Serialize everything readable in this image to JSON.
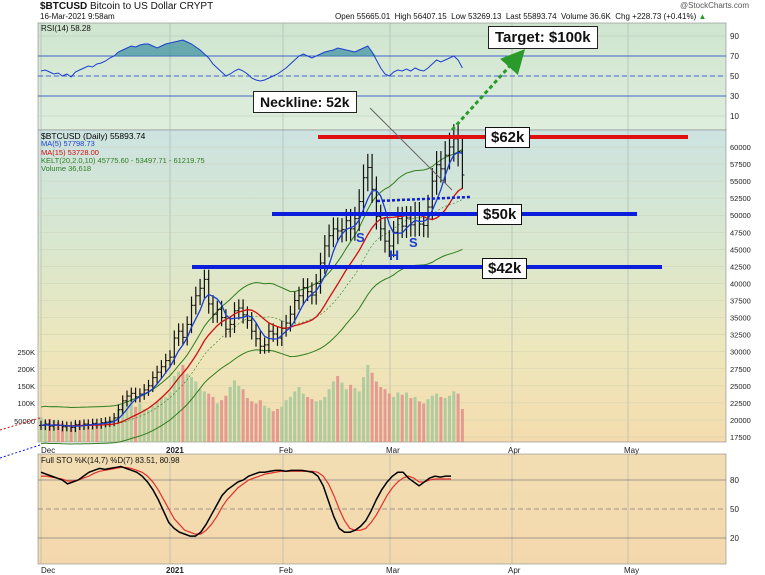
{
  "header": {
    "symbol": "$BTCUSD",
    "name": "Bitcoin to US Dollar",
    "exchange": "CRYPT",
    "date": "16-Mar-2021 9:58am",
    "watermark": "@StockCharts.com",
    "open": "Open 55665.01",
    "high": "High 56407.15",
    "low": "Low 53269.13",
    "last": "Last 55893.74",
    "volume": "Volume 36.6K",
    "chg": "Chg +228.73 (+0.41%)",
    "chg_arrow": "▲"
  },
  "rsi_panel": {
    "label": "RSI(14) 58.28",
    "ticks": [
      "90",
      "70",
      "50",
      "30",
      "10"
    ],
    "levels": [
      70,
      50,
      30
    ]
  },
  "price_panel": {
    "legend": [
      {
        "text": "$BTCUSD (Daily) 55893.74",
        "color": "#000000"
      },
      {
        "text": "MA(5) 57798.73",
        "color": "#1a3ecf"
      },
      {
        "text": "MA(15) 53728.00",
        "color": "#d01010"
      },
      {
        "text": "KELT(20,2.0,10) 45775.60 - 53497.71 - 61219.75",
        "color": "#2e7d1e"
      },
      {
        "text": "Volume 36,618",
        "color": "#2e7d1e"
      }
    ],
    "price_ticks": [
      "60000",
      "57500",
      "55000",
      "52500",
      "50000",
      "47500",
      "45000",
      "42500",
      "40000",
      "37500",
      "35000",
      "32500",
      "30000",
      "27500",
      "25000",
      "22500",
      "20000",
      "17500"
    ],
    "volume_ticks": [
      "250K",
      "200K",
      "150K",
      "100K",
      "50000"
    ]
  },
  "annotations": {
    "target": "Target: $100k",
    "neckline": "Neckline: 52k",
    "level_62": "$62k",
    "level_50": "$50k",
    "level_42": "$42k",
    "hs_left": "S",
    "hs_head": "H",
    "hs_right": "S"
  },
  "sto_panel": {
    "label": "Full STO %K(14,7) %D(7) 83.51, 80.98",
    "ticks": [
      "80",
      "50",
      "20"
    ],
    "levels": [
      80,
      50,
      20
    ]
  },
  "x_axis": {
    "labels": [
      "Dec",
      "2021",
      "Feb",
      "Mar",
      "Apr",
      "May"
    ]
  },
  "chart_data": {
    "type": "candlestick",
    "title": "$BTCUSD Bitcoin to US Dollar CRYPT",
    "x_labels": [
      "Dec",
      "2021",
      "Feb",
      "Mar",
      "Apr",
      "May"
    ],
    "y_range": [
      17500,
      62500
    ],
    "horizontal_levels": [
      62000,
      50000,
      42000
    ],
    "neckline": 52000,
    "target": 100000,
    "close_series": [
      19200,
      19400,
      19100,
      19300,
      19200,
      19000,
      19100,
      18900,
      19300,
      19200,
      19400,
      19300,
      19500,
      19400,
      19600,
      19700,
      19800,
      20300,
      21500,
      22800,
      23500,
      23900,
      23400,
      23800,
      24400,
      25000,
      26200,
      27000,
      27800,
      28700,
      29200,
      32000,
      33000,
      32100,
      34000,
      36800,
      38200,
      39300,
      40600,
      37000,
      35500,
      36200,
      35000,
      33300,
      34000,
      36000,
      36400,
      35400,
      34600,
      33000,
      31900,
      30800,
      31000,
      33000,
      32600,
      32000,
      33400,
      34200,
      35500,
      37500,
      38200,
      39400,
      38800,
      38300,
      40000,
      43000,
      45500,
      47000,
      48000,
      47700,
      47900,
      49200,
      48000,
      49500,
      52000,
      55500,
      57000,
      53800,
      49800,
      48000,
      46200,
      45500,
      47500,
      49500,
      48400,
      49600,
      48600,
      50200,
      48700,
      48500,
      51200,
      55000,
      57400,
      56800,
      58800,
      60000,
      61200,
      59300,
      55900
    ],
    "volume_series": [
      45,
      38,
      42,
      40,
      36,
      34,
      30,
      28,
      36,
      38,
      34,
      30,
      28,
      32,
      30,
      36,
      40,
      44,
      60,
      68,
      72,
      80,
      64,
      70,
      60,
      58,
      66,
      74,
      80,
      82,
      90,
      120,
      128,
      140,
      124,
      118,
      110,
      96,
      92,
      88,
      82,
      70,
      76,
      84,
      100,
      112,
      102,
      96,
      80,
      74,
      70,
      76,
      66,
      62,
      56,
      60,
      64,
      76,
      82,
      92,
      100,
      88,
      82,
      78,
      74,
      76,
      82,
      96,
      110,
      120,
      108,
      96,
      104,
      98,
      92,
      118,
      140,
      126,
      110,
      100,
      96,
      88,
      82,
      90,
      86,
      90,
      80,
      82,
      74,
      70,
      78,
      84,
      88,
      82,
      80,
      84,
      92,
      88,
      60
    ],
    "rsi_series": [
      55,
      56,
      54,
      52,
      53,
      50,
      52,
      49,
      54,
      56,
      58,
      60,
      59,
      62,
      63,
      65,
      68,
      70,
      74,
      76,
      78,
      80,
      79,
      81,
      82,
      82,
      80,
      78,
      80,
      82,
      83,
      84,
      85,
      86,
      84,
      82,
      79,
      76,
      72,
      68,
      62,
      58,
      54,
      50,
      52,
      55,
      57,
      55,
      52,
      48,
      46,
      45,
      46,
      48,
      50,
      52,
      55,
      58,
      62,
      66,
      70,
      72,
      70,
      68,
      70,
      72,
      74,
      75,
      76,
      78,
      77,
      76,
      75,
      74,
      76,
      78,
      80,
      74,
      66,
      58,
      52,
      50,
      54,
      56,
      55,
      57,
      55,
      58,
      56,
      55,
      58,
      62,
      66,
      64,
      66,
      68,
      70,
      66,
      58
    ],
    "sto_k": [
      88,
      86,
      84,
      82,
      80,
      76,
      78,
      80,
      84,
      88,
      90,
      92,
      91,
      92,
      93,
      94,
      92,
      90,
      88,
      84,
      78,
      70,
      60,
      48,
      36,
      30,
      26,
      24,
      22,
      22,
      26,
      34,
      44,
      54,
      64,
      70,
      74,
      78,
      80,
      84,
      86,
      88,
      88,
      89,
      90,
      90,
      89,
      90,
      90,
      90,
      89,
      88,
      84,
      74,
      58,
      42,
      30,
      26,
      26,
      28,
      32,
      38,
      48,
      60,
      70,
      78,
      84,
      88,
      88,
      82,
      78,
      74,
      78,
      82,
      84,
      83,
      84,
      84
    ],
    "sto_d": [
      84,
      84,
      83,
      82,
      81,
      79,
      79,
      80,
      82,
      84,
      87,
      89,
      90,
      91,
      92,
      93,
      93,
      92,
      90,
      88,
      84,
      78,
      70,
      60,
      50,
      40,
      34,
      28,
      26,
      24,
      24,
      28,
      34,
      42,
      52,
      60,
      66,
      72,
      76,
      80,
      82,
      84,
      86,
      87,
      88,
      89,
      89,
      89,
      89,
      89,
      89,
      89,
      88,
      84,
      76,
      64,
      50,
      38,
      30,
      28,
      28,
      30,
      36,
      44,
      54,
      64,
      72,
      78,
      82,
      84,
      82,
      78,
      78,
      80,
      81,
      81,
      81,
      81
    ]
  }
}
